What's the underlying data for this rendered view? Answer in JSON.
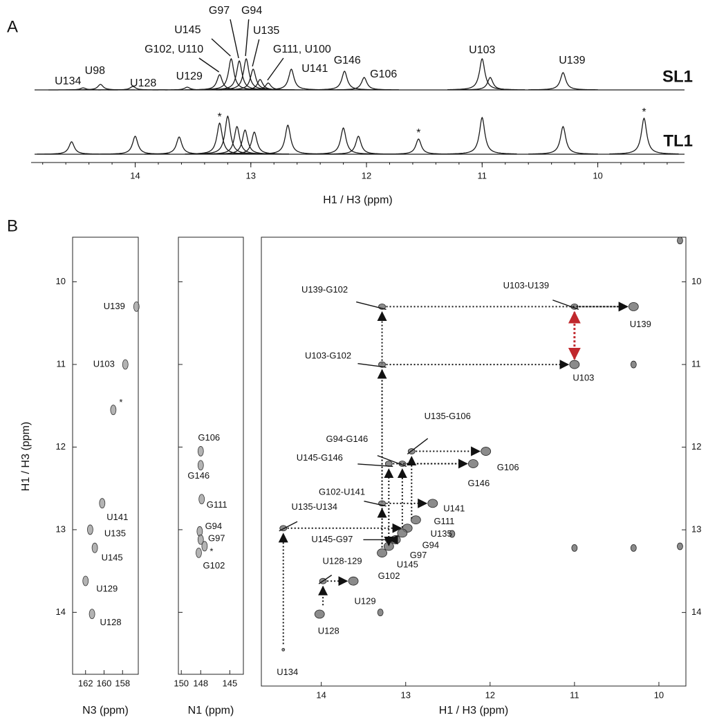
{
  "chart_data": [
    {
      "type": "spectrum",
      "panel_label": "A",
      "xlabel": "H1 / H3 (ppm)",
      "xlim": [
        14.9,
        9.25
      ],
      "xticks": [
        14,
        13,
        12,
        11,
        10
      ],
      "series": [
        {
          "name": "SL1",
          "color": "#1a1a1a",
          "x": [
            14.45,
            14.3,
            14.02,
            13.55,
            13.27,
            13.17,
            13.1,
            13.04,
            12.98,
            12.92,
            12.85,
            12.65,
            12.19,
            12.02,
            11.0,
            10.93,
            10.3
          ],
          "values": [
            3,
            8,
            5,
            4,
            22,
            45,
            42,
            45,
            30,
            15,
            10,
            30,
            27,
            18,
            45,
            18,
            25
          ],
          "labels": [
            "U134",
            "U98",
            "U128",
            "U129",
            "G102, U110",
            "U145",
            "G97",
            "G94",
            "U135",
            null,
            "G111, U100",
            "U141",
            "G146",
            "G106",
            "U103",
            null,
            "U139"
          ]
        },
        {
          "name": "TL1",
          "color": "#1a1a1a",
          "x": [
            14.55,
            14.0,
            13.62,
            13.27,
            13.2,
            13.12,
            13.05,
            12.97,
            12.68,
            12.2,
            12.07,
            11.55,
            11.0,
            10.3,
            9.6
          ],
          "values": [
            18,
            26,
            25,
            45,
            55,
            40,
            35,
            32,
            42,
            38,
            26,
            22,
            53,
            40,
            52
          ],
          "labels": [
            null,
            null,
            null,
            "*",
            null,
            null,
            null,
            null,
            null,
            null,
            null,
            "*",
            null,
            null,
            "*"
          ]
        }
      ]
    },
    {
      "type": "hsqc",
      "panel_label": "B",
      "xlabel": "N3 (ppm)",
      "ylabel": "H1 / H3 (ppm)",
      "xlim": [
        163.4,
        156.3
      ],
      "ylim": [
        9.46,
        14.75
      ],
      "xticks": [
        162,
        160,
        158
      ],
      "yticks": [
        10,
        11,
        12,
        13,
        14
      ],
      "color": "#9a9a9a",
      "peaks": {
        "x": [
          156.5,
          157.7,
          159.0,
          160.2,
          161.5,
          161.0,
          162.0,
          161.3
        ],
        "y": [
          10.3,
          11.0,
          11.55,
          12.68,
          13.0,
          13.22,
          13.62,
          14.02
        ],
        "labels": [
          "U139",
          "U103",
          "*",
          "U141",
          "U135",
          "U145",
          "U129",
          "U128"
        ]
      }
    },
    {
      "type": "hsqc",
      "xlabel": "N1 (ppm)",
      "xlim": [
        150.3,
        143.6
      ],
      "ylim": [
        9.46,
        14.75
      ],
      "xticks": [
        150,
        148,
        145
      ],
      "yticks": [
        10,
        11,
        12,
        13,
        14
      ],
      "color": "#9a9a9a",
      "peaks": {
        "x": [
          148.0,
          148.0,
          147.9,
          148.1,
          148.0,
          147.6,
          148.2
        ],
        "y": [
          12.05,
          12.22,
          12.63,
          13.02,
          13.12,
          13.2,
          13.28
        ],
        "labels": [
          "G106",
          "G146",
          "G111",
          "G94",
          "G97",
          "*",
          "G102"
        ]
      }
    },
    {
      "type": "noesy",
      "xlabel": "H1 / H3 (ppm)",
      "xlim": [
        14.71,
        9.68
      ],
      "ylim": [
        9.46,
        14.89
      ],
      "xticks": [
        14,
        13,
        12,
        11,
        10
      ],
      "yticks": [
        10,
        11,
        12,
        13,
        14
      ],
      "color": "#6e6e6e",
      "diagonal": {
        "x": [
          10.3,
          11.0,
          12.05,
          12.2,
          12.68,
          12.88,
          12.98,
          13.04,
          13.12,
          13.2,
          13.28,
          13.62,
          14.02,
          14.45
        ],
        "y": [
          10.3,
          11.0,
          12.05,
          12.2,
          12.68,
          12.88,
          12.98,
          13.04,
          13.12,
          13.2,
          13.28,
          13.62,
          14.02,
          14.45
        ],
        "labels": [
          "U139",
          "U103",
          "G106",
          "G146",
          "U141",
          "G111",
          "U135",
          "G94",
          "G97",
          "U145",
          "G102",
          "U129",
          "U128",
          "U134"
        ]
      },
      "cross_peaks": {
        "x": [
          11.0,
          13.28,
          13.28,
          12.93,
          13.04,
          13.2,
          13.28,
          14.45,
          13.2,
          13.98
        ],
        "y": [
          10.3,
          10.3,
          11.0,
          12.05,
          12.2,
          12.2,
          12.68,
          12.98,
          13.12,
          13.62
        ],
        "labels": [
          "U103-U139",
          "U139-G102",
          "U103-G102",
          "U135-G106",
          "G94-G146",
          "U145-G146",
          "G102-U141",
          "U135-U134",
          "U145-G97",
          "U128-129"
        ]
      },
      "other_peaks": {
        "x": [
          9.75,
          12.45,
          11.0,
          10.3,
          13.3,
          10.3,
          9.75
        ],
        "y": [
          9.5,
          13.05,
          13.22,
          13.22,
          14.0,
          11.0,
          13.2
        ]
      }
    }
  ]
}
